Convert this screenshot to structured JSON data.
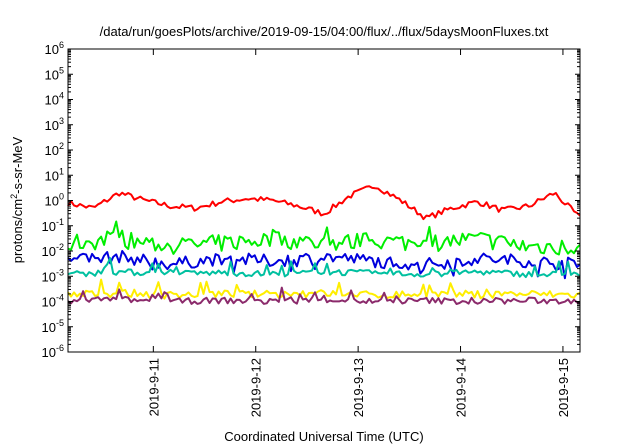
{
  "chart_data": {
    "type": "line",
    "title": "/data/run/goesPlots/archive/2019-09-15/04:00/flux/../flux/5daysMoonFluxes.txt",
    "xlabel": "Coordinated Universal Time (UTC)",
    "ylabel_parts": {
      "base": "protons/cm",
      "sup": "2",
      "rest": "-s-sr-MeV"
    },
    "yscale": "log",
    "ylim": [
      1e-06,
      1000000.0
    ],
    "y_ticks": [
      {
        "value": 1e-06,
        "exp": "-6"
      },
      {
        "value": 1e-05,
        "exp": "-5"
      },
      {
        "value": 0.0001,
        "exp": "-4"
      },
      {
        "value": 0.001,
        "exp": "-3"
      },
      {
        "value": 0.01,
        "exp": "-2"
      },
      {
        "value": 0.1,
        "exp": "-1"
      },
      {
        "value": 1,
        "exp": "0"
      },
      {
        "value": 10,
        "exp": "1"
      },
      {
        "value": 100,
        "exp": "2"
      },
      {
        "value": 1000,
        "exp": "3"
      },
      {
        "value": 10000,
        "exp": "4"
      },
      {
        "value": 100000,
        "exp": "5"
      },
      {
        "value": 1000000,
        "exp": "6"
      }
    ],
    "tick_base": "10",
    "xlim": [
      "2019-09-10 04:00",
      "2019-09-15 04:00"
    ],
    "x_ticks": [
      "2019-9-11",
      "2019-9-12",
      "2019-9-13",
      "2019-9-14",
      "2019-9-15"
    ],
    "x_tick_dates": [
      "2019-09-11 00:00",
      "2019-09-12 00:00",
      "2019-09-13 00:00",
      "2019-09-14 00:00",
      "2019-09-15 00:00"
    ],
    "grid": false,
    "legend": "none",
    "series": [
      {
        "color": "#ff0000",
        "x": [
          "2019-09-10 04:00",
          "2019-09-10 10:00",
          "2019-09-10 16:00",
          "2019-09-10 22:00",
          "2019-09-11 04:00",
          "2019-09-11 10:00",
          "2019-09-11 16:00",
          "2019-09-11 22:00",
          "2019-09-12 04:00",
          "2019-09-12 10:00",
          "2019-09-12 16:00",
          "2019-09-12 22:00",
          "2019-09-13 04:00",
          "2019-09-13 10:00",
          "2019-09-13 16:00",
          "2019-09-13 22:00",
          "2019-09-14 04:00",
          "2019-09-14 10:00",
          "2019-09-14 16:00",
          "2019-09-14 22:00",
          "2019-09-15 04:00"
        ],
        "values": [
          0.8,
          0.5,
          2.0,
          1.0,
          0.6,
          0.5,
          0.9,
          1.2,
          1.0,
          0.6,
          0.3,
          1.5,
          4.0,
          1.0,
          0.2,
          0.5,
          0.9,
          0.4,
          0.6,
          2.0,
          0.2
        ]
      },
      {
        "color": "#00ee00",
        "x": [
          "2019-09-10 04:00",
          "2019-09-10 16:00",
          "2019-09-11 04:00",
          "2019-09-11 16:00",
          "2019-09-12 04:00",
          "2019-09-12 16:00",
          "2019-09-13 04:00",
          "2019-09-13 16:00",
          "2019-09-14 04:00",
          "2019-09-14 16:00",
          "2019-09-15 04:00"
        ],
        "values": [
          0.02,
          0.03,
          0.015,
          0.02,
          0.03,
          0.02,
          0.025,
          0.02,
          0.03,
          0.015,
          0.015
        ]
      },
      {
        "color": "#0000dd",
        "x": [
          "2019-09-10 04:00",
          "2019-09-10 16:00",
          "2019-09-11 04:00",
          "2019-09-11 16:00",
          "2019-09-12 04:00",
          "2019-09-12 16:00",
          "2019-09-13 04:00",
          "2019-09-13 16:00",
          "2019-09-14 04:00",
          "2019-09-14 16:00",
          "2019-09-15 04:00"
        ],
        "values": [
          0.004,
          0.006,
          0.003,
          0.005,
          0.004,
          0.006,
          0.004,
          0.003,
          0.005,
          0.004,
          0.003
        ]
      },
      {
        "color": "#00c0a0",
        "x": [
          "2019-09-10 04:00",
          "2019-09-10 16:00",
          "2019-09-11 04:00",
          "2019-09-11 16:00",
          "2019-09-12 04:00",
          "2019-09-12 16:00",
          "2019-09-13 04:00",
          "2019-09-13 16:00",
          "2019-09-14 04:00",
          "2019-09-14 16:00",
          "2019-09-15 04:00"
        ],
        "values": [
          0.0012,
          0.0015,
          0.0012,
          0.0014,
          0.0012,
          0.0015,
          0.0013,
          0.0012,
          0.0015,
          0.0012,
          0.0012
        ]
      },
      {
        "color": "#ffee00",
        "x": [
          "2019-09-10 04:00",
          "2019-09-10 16:00",
          "2019-09-11 04:00",
          "2019-09-11 16:00",
          "2019-09-12 04:00",
          "2019-09-12 16:00",
          "2019-09-13 04:00",
          "2019-09-13 16:00",
          "2019-09-14 04:00",
          "2019-09-14 16:00",
          "2019-09-15 04:00"
        ],
        "values": [
          0.00018,
          0.00022,
          0.00018,
          0.0002,
          0.00019,
          0.00021,
          0.00018,
          0.0002,
          0.00019,
          0.0002,
          0.00018
        ]
      },
      {
        "color": "#8b2a6b",
        "x": [
          "2019-09-10 04:00",
          "2019-09-10 16:00",
          "2019-09-11 04:00",
          "2019-09-11 16:00",
          "2019-09-12 04:00",
          "2019-09-12 16:00",
          "2019-09-13 04:00",
          "2019-09-13 16:00",
          "2019-09-14 04:00",
          "2019-09-14 16:00",
          "2019-09-15 04:00"
        ],
        "values": [
          0.0001,
          0.00012,
          0.0001,
          0.00011,
          0.0001,
          0.00012,
          0.0001,
          0.00011,
          0.0001,
          0.00011,
          0.0001
        ]
      }
    ]
  }
}
